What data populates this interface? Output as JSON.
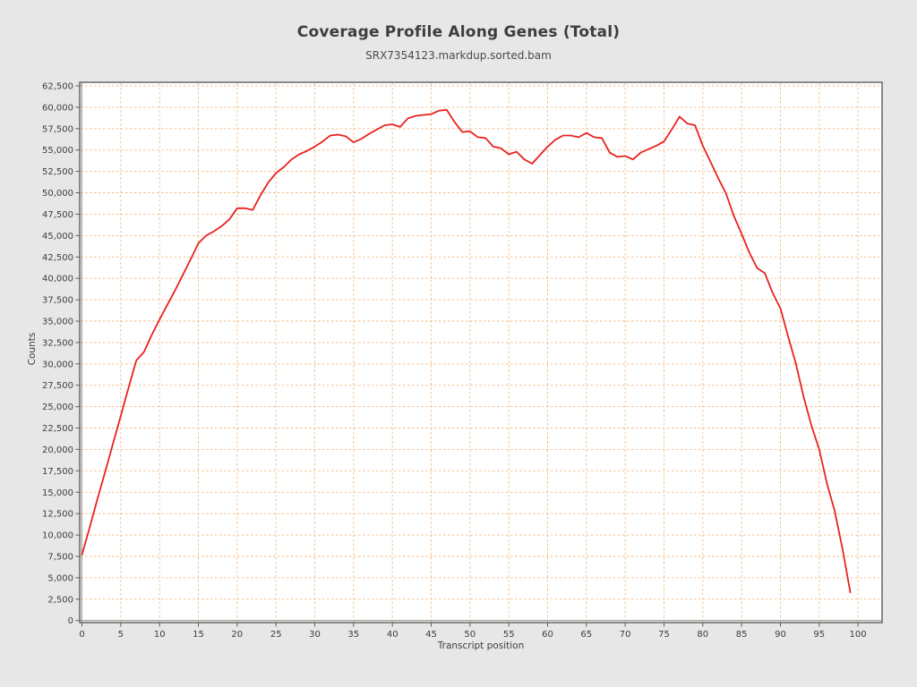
{
  "page": {
    "background_color": "#e7e7e7",
    "window_title": "Coverage Profile Along Genes (Total)"
  },
  "chart_data": {
    "type": "line",
    "title": "Coverage Profile Along Genes (Total)",
    "subtitle": "SRX7354123.markdup.sorted.bam",
    "xlabel": "Transcript position",
    "ylabel": "Counts",
    "legend": "none",
    "grid": true,
    "x_start": 0,
    "x_step": 1,
    "xlim": [
      -0.29,
      103.1
    ],
    "ylim": [
      0,
      62500
    ],
    "x_ticks": [
      0,
      5,
      10,
      15,
      20,
      25,
      30,
      35,
      40,
      45,
      50,
      55,
      60,
      65,
      70,
      75,
      80,
      85,
      90,
      95,
      100
    ],
    "y_ticks": [
      0,
      2500,
      5000,
      7500,
      10000,
      12500,
      15000,
      17500,
      20000,
      22500,
      25000,
      27500,
      30000,
      32500,
      35000,
      37500,
      40000,
      42500,
      45000,
      47500,
      50000,
      52500,
      55000,
      57500,
      60000,
      62500
    ],
    "series": [
      {
        "name": "SRX7354123.markdup.sorted.bam",
        "values": [
          7700,
          10900,
          14200,
          17400,
          20700,
          23900,
          27200,
          30400,
          31400,
          33400,
          35200,
          36900,
          38600,
          40400,
          42200,
          44100,
          45000,
          45500,
          46100,
          46900,
          48200,
          48200,
          48000,
          49700,
          51200,
          52300,
          53000,
          53900,
          54500,
          54900,
          55400,
          56000,
          56700,
          56800,
          56600,
          55900,
          56300,
          56900,
          57400,
          57900,
          58000,
          57700,
          58700,
          59000,
          59100,
          59200,
          59600,
          59700,
          58300,
          57100,
          57200,
          56500,
          56400,
          55400,
          55200,
          54500,
          54800,
          53900,
          53400,
          54400,
          55400,
          56200,
          56700,
          56700,
          56500,
          57000,
          56500,
          56400,
          54700,
          54200,
          54300,
          53900,
          54700,
          55100,
          55500,
          56000,
          57400,
          58900,
          58100,
          57900,
          55500,
          53600,
          51700,
          49900,
          47300,
          45200,
          43000,
          41200,
          40600,
          38300,
          36500,
          33200,
          30000,
          26100,
          22800,
          20000,
          16000,
          12800,
          8400,
          3300
        ]
      }
    ],
    "colors": {
      "line": "#e8231f",
      "grid": "#f3ba82",
      "plot_background": "#ffffff",
      "plot_outline": "#5c5c5c",
      "axis_bevel": "#8a8a8a",
      "tick_mark": "#5c5c5c",
      "text": "#3d3d3d"
    }
  }
}
